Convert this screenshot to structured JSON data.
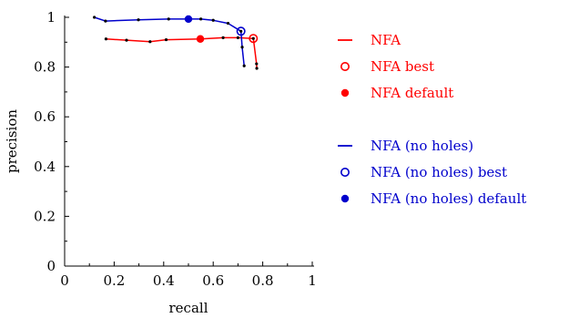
{
  "chart_data": {
    "type": "line",
    "xlabel": "recall",
    "ylabel": "precision",
    "xlim": [
      0,
      1
    ],
    "ylim": [
      0,
      1
    ],
    "xticks": [
      "0",
      "0.2",
      "0.4",
      "0.6",
      "0.8",
      "1"
    ],
    "yticks": [
      "0",
      "0.2",
      "0.4",
      "0.6",
      "0.8",
      "1"
    ],
    "grid": false,
    "legend_position": "right",
    "series": [
      {
        "name": "NFA",
        "color": "#ff0000",
        "points": [
          [
            0.167,
            0.913
          ],
          [
            0.25,
            0.908
          ],
          [
            0.345,
            0.902
          ],
          [
            0.41,
            0.91
          ],
          [
            0.55,
            0.913
          ],
          [
            0.64,
            0.918
          ],
          [
            0.7,
            0.918
          ],
          [
            0.762,
            0.915
          ],
          [
            0.775,
            0.813
          ],
          [
            0.776,
            0.795
          ]
        ],
        "best": {
          "name": "NFA best",
          "point": [
            0.762,
            0.915
          ]
        },
        "default": {
          "name": "NFA default",
          "point": [
            0.548,
            0.913
          ]
        }
      },
      {
        "name": "NFA (no holes)",
        "color": "#0000cc",
        "points": [
          [
            0.12,
            1.0
          ],
          [
            0.165,
            0.985
          ],
          [
            0.298,
            0.99
          ],
          [
            0.42,
            0.993
          ],
          [
            0.55,
            0.993
          ],
          [
            0.6,
            0.988
          ],
          [
            0.66,
            0.976
          ],
          [
            0.712,
            0.944
          ],
          [
            0.717,
            0.88
          ],
          [
            0.725,
            0.805
          ]
        ],
        "best": {
          "name": "NFA (no holes) best",
          "point": [
            0.712,
            0.944
          ]
        },
        "default": {
          "name": "NFA (no holes) default",
          "point": [
            0.5,
            0.993
          ]
        }
      }
    ]
  }
}
